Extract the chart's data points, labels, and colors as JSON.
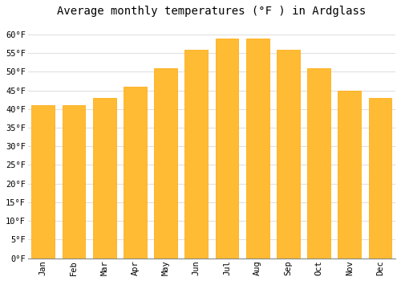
{
  "title": "Average monthly temperatures (°F ) in Ardglass",
  "months": [
    "Jan",
    "Feb",
    "Mar",
    "Apr",
    "May",
    "Jun",
    "Jul",
    "Aug",
    "Sep",
    "Oct",
    "Nov",
    "Dec"
  ],
  "values": [
    41,
    41,
    43,
    46,
    51,
    56,
    59,
    59,
    56,
    51,
    45,
    43
  ],
  "bar_color_face": "#FFBB33",
  "bar_color_edge": "#FFA500",
  "background_color": "#FFFFFF",
  "grid_color": "#E0E0E0",
  "ylim": [
    0,
    63
  ],
  "ytick_step": 5,
  "title_fontsize": 10,
  "tick_fontsize": 7.5,
  "tick_font": "monospace",
  "bar_width": 0.75
}
